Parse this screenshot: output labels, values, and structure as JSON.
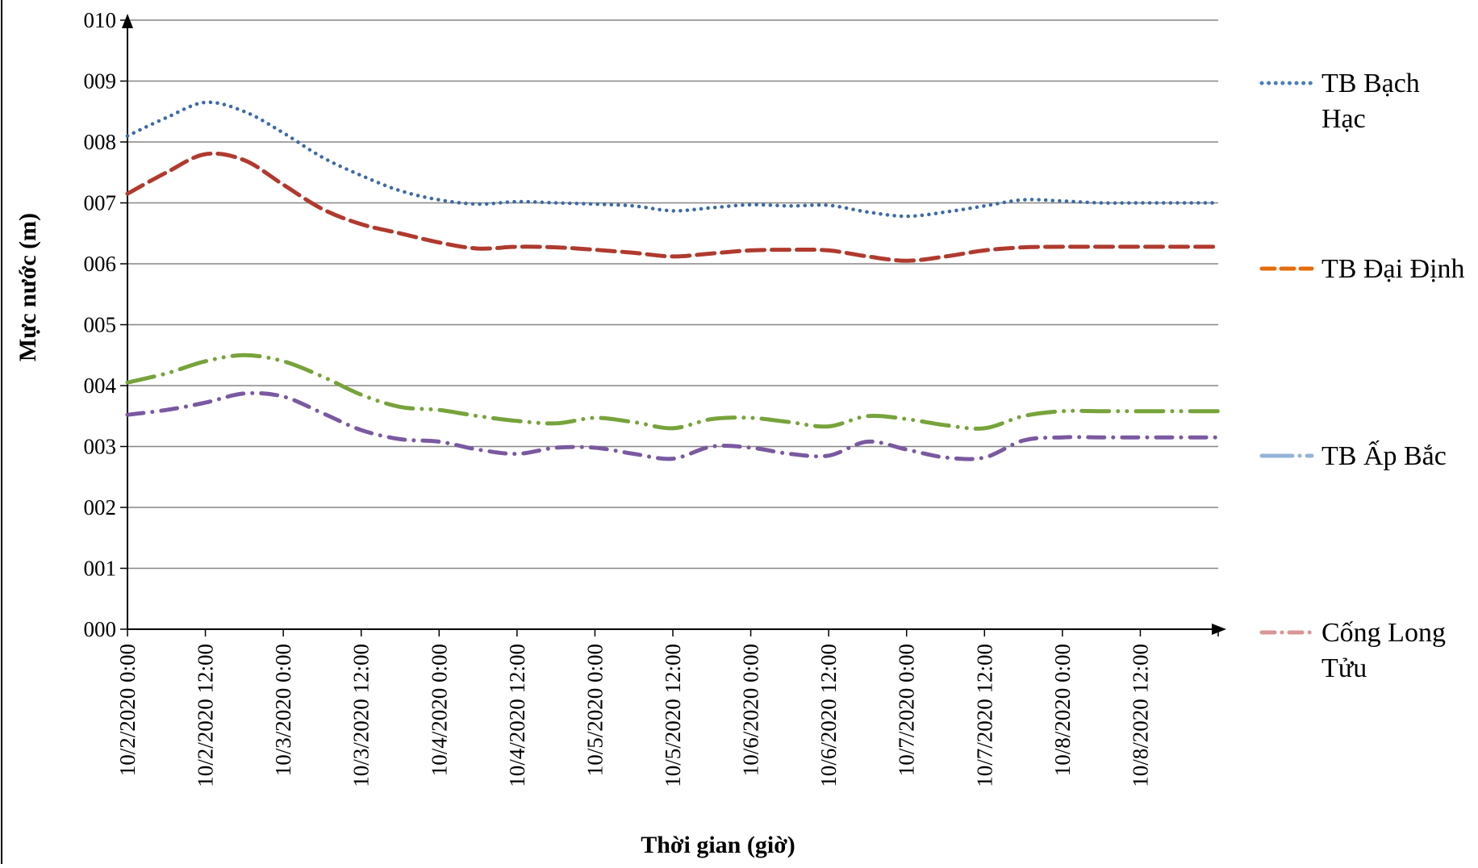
{
  "chart_data": {
    "type": "line",
    "title": "",
    "xlabel": "Thời gian (giờ)",
    "ylabel": "Mực nước (m)",
    "ylim": [
      0,
      10
    ],
    "yticks": [
      "000",
      "001",
      "002",
      "003",
      "004",
      "005",
      "006",
      "007",
      "008",
      "009",
      "010"
    ],
    "xlim_hours": [
      0,
      168
    ],
    "x_tick_labels": [
      "10/2/2020 0:00",
      "10/2/2020 12:00",
      "10/3/2020 0:00",
      "10/3/2020 12:00",
      "10/4/2020 0:00",
      "10/4/2020 12:00",
      "10/5/2020 0:00",
      "10/5/2020 12:00",
      "10/6/2020 0:00",
      "10/6/2020 12:00",
      "10/7/2020 0:00",
      "10/7/2020 12:00",
      "10/8/2020 0:00",
      "10/8/2020 12:00"
    ],
    "grid": "horizontal",
    "legend_position": "right",
    "series": [
      {
        "name": "TB Bạch Hạc",
        "legend_lines": [
          "TB Bạch",
          "Hạc"
        ],
        "legend_color": "#4A7EBB",
        "line_color": "#3C6BA5",
        "style": "dotted",
        "x": [
          0,
          6,
          12,
          18,
          24,
          30,
          36,
          42,
          48,
          54,
          60,
          66,
          72,
          78,
          84,
          90,
          96,
          102,
          108,
          114,
          120,
          126,
          132,
          138,
          144,
          150,
          156,
          162,
          168
        ],
        "y": [
          8.1,
          8.4,
          8.65,
          8.5,
          8.15,
          7.75,
          7.45,
          7.2,
          7.05,
          6.98,
          7.02,
          7.0,
          6.98,
          6.95,
          6.87,
          6.92,
          6.97,
          6.95,
          6.96,
          6.85,
          6.78,
          6.85,
          6.95,
          7.05,
          7.03,
          7.0,
          7.0,
          7.0,
          7.0
        ]
      },
      {
        "name": "TB Đại Định",
        "legend_lines": [
          "TB Đại Định"
        ],
        "legend_color": "#E46C0A",
        "line_color": "#B03A2E",
        "style": "dashed",
        "x": [
          0,
          6,
          12,
          18,
          24,
          30,
          36,
          42,
          48,
          54,
          60,
          66,
          72,
          78,
          84,
          90,
          96,
          102,
          108,
          114,
          120,
          126,
          132,
          138,
          144,
          150,
          156,
          162,
          168
        ],
        "y": [
          7.15,
          7.5,
          7.8,
          7.7,
          7.3,
          6.9,
          6.65,
          6.5,
          6.35,
          6.25,
          6.28,
          6.27,
          6.23,
          6.18,
          6.12,
          6.17,
          6.22,
          6.23,
          6.22,
          6.12,
          6.05,
          6.12,
          6.22,
          6.27,
          6.28,
          6.28,
          6.28,
          6.28,
          6.28
        ]
      },
      {
        "name": "TB Ấp Bắc",
        "legend_lines": [
          "TB Ấp Bắc"
        ],
        "legend_color": "#95B3D7",
        "line_color": "#77A33B",
        "style": "long-dash-dot-dot",
        "x": [
          0,
          6,
          12,
          18,
          24,
          30,
          36,
          42,
          48,
          54,
          60,
          66,
          72,
          78,
          84,
          90,
          96,
          102,
          108,
          114,
          120,
          126,
          132,
          138,
          144,
          150,
          156,
          162,
          168
        ],
        "y": [
          4.05,
          4.2,
          4.4,
          4.5,
          4.4,
          4.15,
          3.85,
          3.65,
          3.6,
          3.5,
          3.42,
          3.38,
          3.47,
          3.4,
          3.3,
          3.45,
          3.47,
          3.4,
          3.33,
          3.5,
          3.45,
          3.35,
          3.3,
          3.5,
          3.58,
          3.58,
          3.58,
          3.58,
          3.58
        ]
      },
      {
        "name": "Cống Long Tửu",
        "legend_lines": [
          "Cống Long",
          "Tửu"
        ],
        "legend_color": "#D99694",
        "line_color": "#7A59A0",
        "style": "dash-dot",
        "x": [
          0,
          6,
          12,
          18,
          24,
          30,
          36,
          42,
          48,
          54,
          60,
          66,
          72,
          78,
          84,
          90,
          96,
          102,
          108,
          114,
          120,
          126,
          132,
          138,
          144,
          150,
          156,
          162,
          168
        ],
        "y": [
          3.52,
          3.6,
          3.72,
          3.87,
          3.82,
          3.55,
          3.27,
          3.12,
          3.08,
          2.95,
          2.88,
          2.98,
          2.98,
          2.88,
          2.8,
          3.0,
          2.98,
          2.88,
          2.85,
          3.08,
          2.95,
          2.82,
          2.82,
          3.1,
          3.15,
          3.15,
          3.15,
          3.15,
          3.15
        ]
      }
    ]
  }
}
